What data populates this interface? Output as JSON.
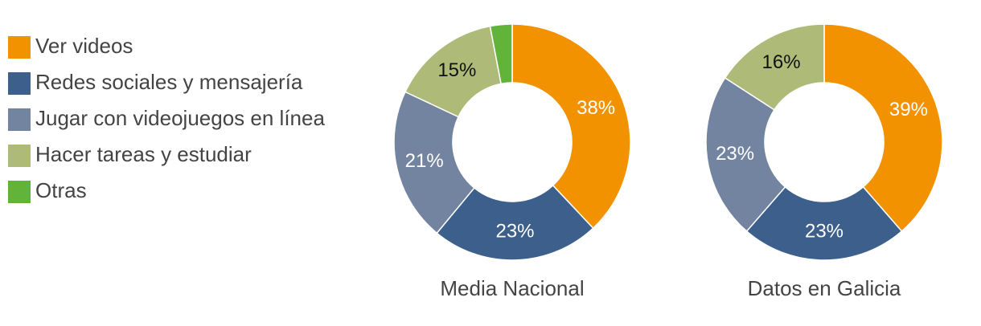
{
  "chart_data": [
    {
      "type": "donut",
      "title": "Media Nacional",
      "categories": [
        "Ver videos",
        "Redes sociales y mensajería",
        "Jugar con videojuegos en línea",
        "Hacer tareas y estudiar",
        "Otras"
      ],
      "colors": [
        "#f39200",
        "#3d5f8c",
        "#7384a0",
        "#aebb78",
        "#62b33a"
      ],
      "values": [
        38,
        23,
        21,
        15,
        3
      ],
      "value_labels": [
        "38%",
        "23%",
        "21%",
        "15%",
        null
      ]
    },
    {
      "type": "donut",
      "title": "Datos en Galicia",
      "colors": [
        "#f39200",
        "#3d5f8c",
        "#7384a0",
        "#aebb78",
        "#62b33a"
      ],
      "values": [
        39,
        23,
        23,
        16,
        0
      ],
      "value_labels": [
        "39%",
        "23%",
        "23%",
        "16%",
        null
      ]
    }
  ]
}
